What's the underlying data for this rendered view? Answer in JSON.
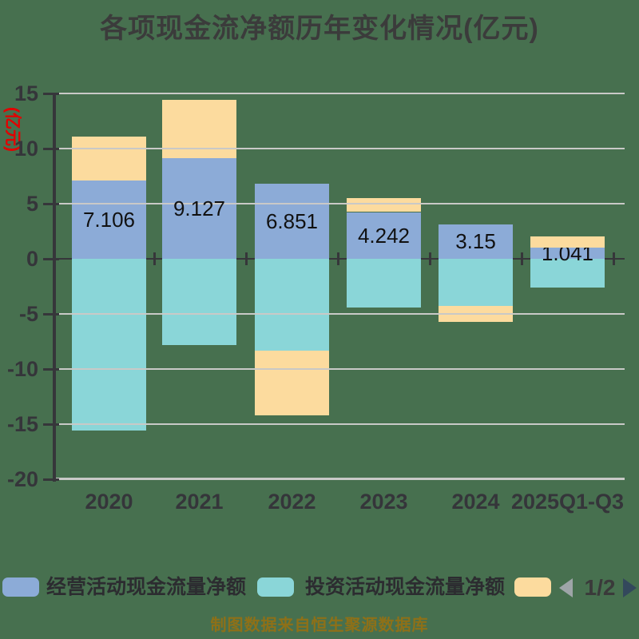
{
  "title": "各项现金流净额历年变化情况(亿元)",
  "y_axis_unit": "(亿元)",
  "source_note": "制图数据来自恒生聚源数据库",
  "legend": {
    "items": [
      {
        "label": "经营活动现金流量净额",
        "color": "#8CABD7"
      },
      {
        "label": "投资活动现金流量净额",
        "color": "#8AD6D8"
      },
      {
        "label": "",
        "color": "#FCDB9E"
      }
    ],
    "pagination": "1/2"
  },
  "colors": {
    "background": "#47704F",
    "operating_bar": "#8CABD7",
    "investing_bar": "#8AD6D8",
    "third_bar": "#FCDB9E",
    "gridline": "#C9C9C7",
    "axis": "#36363A",
    "title_text": "#3B3B3B",
    "unit_text": "#E30000",
    "source_text": "#8E7018"
  },
  "chart_data": {
    "type": "bar",
    "stacked": true,
    "title": "各项现金流净额历年变化情况(亿元)",
    "ylabel": "(亿元)",
    "ylim": [
      -20,
      15
    ],
    "grid": true,
    "legend_position": "bottom",
    "categories": [
      "2020",
      "2021",
      "2022",
      "2023",
      "2024",
      "2025Q1-Q3"
    ],
    "yticks": [
      "15",
      "10",
      "5",
      "0",
      "-5",
      "-10",
      "-15",
      "-20"
    ],
    "ytick_values": [
      15,
      10,
      5,
      0,
      -5,
      -10,
      -15,
      -20
    ],
    "series": [
      {
        "name": "经营活动现金流量净额",
        "color": "#8CABD7",
        "values": [
          7.106,
          9.127,
          6.851,
          4.242,
          3.15,
          1.041
        ],
        "data_labels": [
          "7.106",
          "9.127",
          "6.851",
          "4.242",
          "3.15",
          "1.041"
        ]
      },
      {
        "name": "投资活动现金流量净额",
        "color": "#8AD6D8",
        "values": [
          -15.6,
          -7.8,
          -8.3,
          -4.4,
          -4.3,
          -2.6
        ]
      },
      {
        "name": "",
        "color": "#FCDB9E",
        "values": [
          4.0,
          5.3,
          -5.9,
          1.3,
          -1.4,
          1.0
        ]
      }
    ]
  }
}
